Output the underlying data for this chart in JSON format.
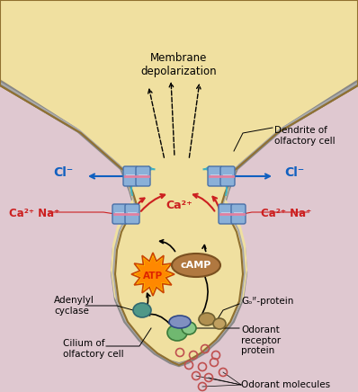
{
  "bg_color": "#dfc8d0",
  "neuron_fill": "#f0e0a0",
  "neuron_outer_mem": "#c0a060",
  "neuron_inner_mem": "#808080",
  "neuron_mem_fill": "#d0b870",
  "pink_bg": "#dfc8d0",
  "channel_fill": "#8ab0d8",
  "channel_edge": "#4870a8",
  "channel_stripe": "#c0d0e8",
  "atp_fill_outer": "#ffcc00",
  "atp_fill_inner": "#ff8800",
  "atp_edge": "#cc4400",
  "camp_fill": "#b07840",
  "camp_edge": "#7a5020",
  "receptor_fill": "#70b870",
  "receptor_edge": "#3a7a3a",
  "receptor_top_fill": "#8090c0",
  "goil_fill": "#b09050",
  "adenylyl_fill": "#509888",
  "odorant_edge": "#c05050",
  "red_color": "#cc2020",
  "blue_color": "#1060c0",
  "cyan_color": "#40b0c0",
  "black": "#000000",
  "title_text": "Membrane\ndepolarization",
  "label_dendrite": "Dendrite of\nolfactory cell",
  "label_cl_left": "Cl⁻",
  "label_cl_right": "Cl⁻",
  "label_ca_center": "Ca²⁺",
  "label_ca_left": "Ca²⁺ Na⁺",
  "label_ca_right": "Ca²⁺ Na⁺",
  "label_adenylyl": "Adenylyl\ncyclase",
  "label_cilium": "Cilium of\nolfactory cell",
  "label_goil": "Gₒᴵᶠ-protein",
  "label_odorant_receptor": "Odorant\nreceptor\nprotein",
  "label_odorant_molecules": "Odorant molecules",
  "label_camp": "cAMP",
  "label_atp": "ATP",
  "figsize": [
    3.98,
    4.36
  ],
  "dpi": 100
}
